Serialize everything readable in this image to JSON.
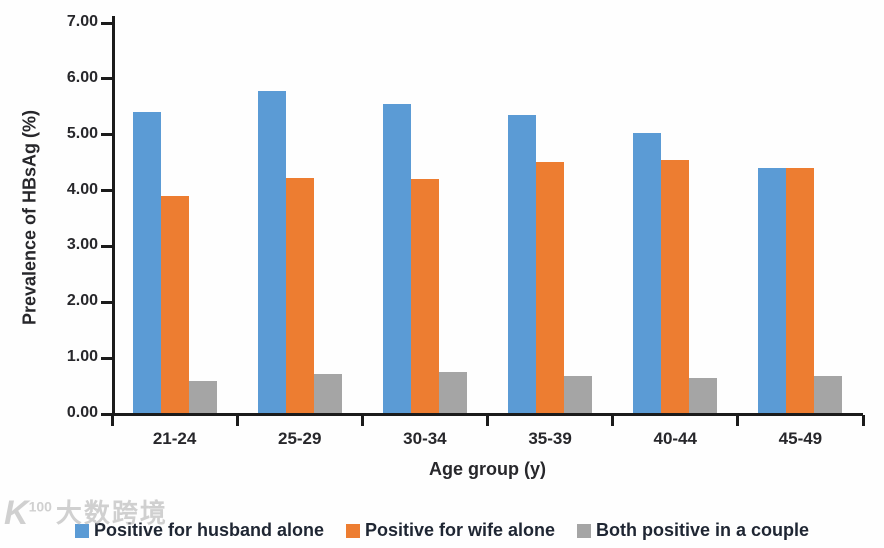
{
  "watermark": {
    "logo_text": "K",
    "logo_sup": "100",
    "text": "大数跨境"
  },
  "chart_data": {
    "type": "bar",
    "title": "",
    "categories": [
      "21-24",
      "25-29",
      "30-34",
      "35-39",
      "40-44",
      "45-49"
    ],
    "series": [
      {
        "key": "husband-alone",
        "name": "Positive for husband alone",
        "color": "#5B9BD5",
        "values": [
          5.38,
          5.77,
          5.53,
          5.33,
          5.01,
          4.38
        ]
      },
      {
        "key": "wife-alone",
        "name": "Positive for wife alone",
        "color": "#ED7D31",
        "values": [
          3.88,
          4.2,
          4.19,
          4.5,
          4.53,
          4.38
        ]
      },
      {
        "key": "both-positive",
        "name": "Both positive in a couple",
        "color": "#A5A5A5",
        "values": [
          0.58,
          0.7,
          0.73,
          0.67,
          0.62,
          0.67
        ]
      }
    ],
    "xlabel": "Age group (y)",
    "ylabel": "Prevalence of HBsAg (%)",
    "ylim": [
      0,
      7
    ],
    "ytick_step": 1,
    "ytick_labels": [
      "0.00",
      "1.00",
      "2.00",
      "3.00",
      "4.00",
      "5.00",
      "6.00",
      "7.00"
    ],
    "grid": false,
    "legend_position": "bottom"
  }
}
